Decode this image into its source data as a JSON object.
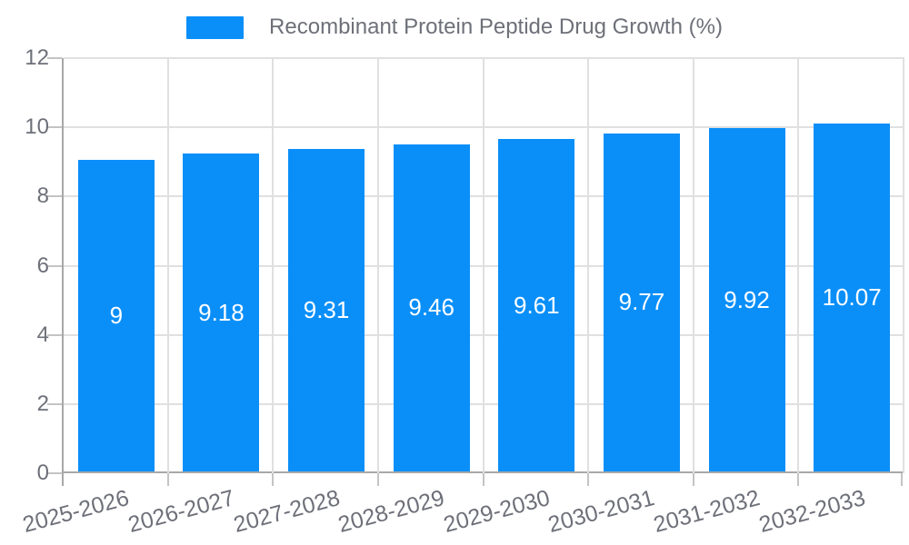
{
  "chart_data": {
    "type": "bar",
    "title": "",
    "legend": "Recombinant Protein Peptide Drug Growth (%)",
    "legend_position": "top-center",
    "categories": [
      "2025-2026",
      "2026-2027",
      "2027-2028",
      "2028-2029",
      "2029-2030",
      "2030-2031",
      "2031-2032",
      "2032-2033"
    ],
    "values": [
      9,
      9.18,
      9.31,
      9.46,
      9.61,
      9.77,
      9.92,
      10.07
    ],
    "value_labels": [
      "9",
      "9.18",
      "9.31",
      "9.46",
      "9.61",
      "9.77",
      "9.92",
      "10.07"
    ],
    "xlabel": "",
    "ylabel": "",
    "ylim": [
      0,
      12
    ],
    "yticks": [
      0,
      2,
      4,
      6,
      8,
      10,
      12
    ],
    "grid": true,
    "x_label_rotation_deg": -15,
    "colors": {
      "bar": "#0A8FF9",
      "grid_line": "#E0E0E0",
      "axis_line": "#A8A8A8",
      "tick": "#C4C4C4",
      "axis_text": "#6E7079",
      "bar_label_text": "#FFFFFF",
      "background": "#FFFFFF"
    }
  }
}
